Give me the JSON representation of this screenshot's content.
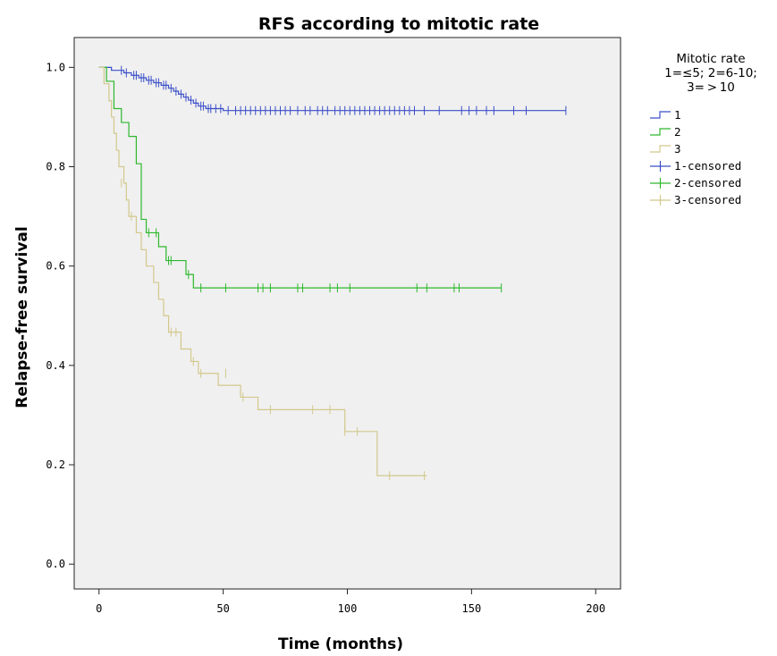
{
  "chart_data": {
    "type": "line",
    "title": "RFS according to mitotic rate",
    "xlabel": "Time (months)",
    "ylabel": "Relapse-free survival",
    "xlim": [
      -10,
      210
    ],
    "ylim": [
      -0.05,
      1.06
    ],
    "xticks": [
      0,
      50,
      100,
      150,
      200
    ],
    "yticks": [
      0.0,
      0.2,
      0.4,
      0.6,
      0.8,
      1.0
    ],
    "xtick_labels": [
      "0",
      "50",
      "100",
      "150",
      "200"
    ],
    "ytick_labels": [
      "0.0",
      "0.2",
      "0.4",
      "0.6",
      "0.8",
      "1.0"
    ],
    "grid": false,
    "legend": {
      "position": "right",
      "title_lines": [
        "Mitotic rate",
        "1=≤5;  2=6-10;",
        "3= > 10"
      ],
      "entries": [
        "1",
        "2",
        "3",
        "1-censored",
        "2-censored",
        "3-censored"
      ]
    },
    "series": [
      {
        "name": "1",
        "color": "#3b4fc8",
        "steps": [
          [
            0,
            1.0
          ],
          [
            5,
            1.0
          ],
          [
            5,
            0.994
          ],
          [
            10,
            0.994
          ],
          [
            10,
            0.989
          ],
          [
            13,
            0.989
          ],
          [
            13,
            0.984
          ],
          [
            16,
            0.984
          ],
          [
            16,
            0.979
          ],
          [
            19,
            0.979
          ],
          [
            19,
            0.974
          ],
          [
            22,
            0.974
          ],
          [
            22,
            0.969
          ],
          [
            25,
            0.969
          ],
          [
            25,
            0.964
          ],
          [
            28,
            0.964
          ],
          [
            28,
            0.958
          ],
          [
            30,
            0.958
          ],
          [
            30,
            0.952
          ],
          [
            32,
            0.952
          ],
          [
            32,
            0.946
          ],
          [
            34,
            0.946
          ],
          [
            34,
            0.94
          ],
          [
            36,
            0.94
          ],
          [
            36,
            0.934
          ],
          [
            38,
            0.934
          ],
          [
            38,
            0.928
          ],
          [
            40,
            0.928
          ],
          [
            40,
            0.922
          ],
          [
            43,
            0.922
          ],
          [
            43,
            0.917
          ],
          [
            50,
            0.917
          ],
          [
            50,
            0.913
          ],
          [
            188,
            0.913
          ]
        ],
        "censored": [
          [
            9,
            0.994
          ],
          [
            11,
            0.989
          ],
          [
            14,
            0.984
          ],
          [
            15,
            0.984
          ],
          [
            17,
            0.979
          ],
          [
            18,
            0.979
          ],
          [
            20,
            0.974
          ],
          [
            21,
            0.974
          ],
          [
            23,
            0.969
          ],
          [
            24,
            0.969
          ],
          [
            26,
            0.964
          ],
          [
            27,
            0.964
          ],
          [
            29,
            0.958
          ],
          [
            31,
            0.952
          ],
          [
            33,
            0.946
          ],
          [
            35,
            0.94
          ],
          [
            37,
            0.934
          ],
          [
            39,
            0.928
          ],
          [
            41,
            0.922
          ],
          [
            42,
            0.922
          ],
          [
            44,
            0.917
          ],
          [
            45,
            0.917
          ],
          [
            47,
            0.917
          ],
          [
            49,
            0.917
          ],
          [
            52,
            0.913
          ],
          [
            55,
            0.913
          ],
          [
            57,
            0.913
          ],
          [
            59,
            0.913
          ],
          [
            61,
            0.913
          ],
          [
            63,
            0.913
          ],
          [
            65,
            0.913
          ],
          [
            67,
            0.913
          ],
          [
            69,
            0.913
          ],
          [
            71,
            0.913
          ],
          [
            73,
            0.913
          ],
          [
            75,
            0.913
          ],
          [
            77,
            0.913
          ],
          [
            80,
            0.913
          ],
          [
            83,
            0.913
          ],
          [
            85,
            0.913
          ],
          [
            88,
            0.913
          ],
          [
            90,
            0.913
          ],
          [
            92,
            0.913
          ],
          [
            95,
            0.913
          ],
          [
            97,
            0.913
          ],
          [
            99,
            0.913
          ],
          [
            101,
            0.913
          ],
          [
            103,
            0.913
          ],
          [
            105,
            0.913
          ],
          [
            107,
            0.913
          ],
          [
            109,
            0.913
          ],
          [
            111,
            0.913
          ],
          [
            113,
            0.913
          ],
          [
            115,
            0.913
          ],
          [
            117,
            0.913
          ],
          [
            119,
            0.913
          ],
          [
            121,
            0.913
          ],
          [
            123,
            0.913
          ],
          [
            125,
            0.913
          ],
          [
            127,
            0.913
          ],
          [
            131,
            0.913
          ],
          [
            137,
            0.913
          ],
          [
            146,
            0.913
          ],
          [
            149,
            0.913
          ],
          [
            152,
            0.913
          ],
          [
            156,
            0.913
          ],
          [
            159,
            0.913
          ],
          [
            167,
            0.913
          ],
          [
            172,
            0.913
          ],
          [
            188,
            0.913
          ]
        ]
      },
      {
        "name": "2",
        "color": "#2db82d",
        "steps": [
          [
            0,
            1.0
          ],
          [
            3,
            1.0
          ],
          [
            3,
            0.972
          ],
          [
            6,
            0.972
          ],
          [
            6,
            0.917
          ],
          [
            9,
            0.917
          ],
          [
            9,
            0.889
          ],
          [
            12,
            0.889
          ],
          [
            12,
            0.861
          ],
          [
            15,
            0.861
          ],
          [
            15,
            0.806
          ],
          [
            17,
            0.806
          ],
          [
            17,
            0.694
          ],
          [
            19,
            0.694
          ],
          [
            19,
            0.667
          ],
          [
            24,
            0.667
          ],
          [
            24,
            0.639
          ],
          [
            27,
            0.639
          ],
          [
            27,
            0.611
          ],
          [
            35,
            0.611
          ],
          [
            35,
            0.583
          ],
          [
            38,
            0.583
          ],
          [
            38,
            0.556
          ],
          [
            162,
            0.556
          ]
        ],
        "censored": [
          [
            20,
            0.667
          ],
          [
            23,
            0.667
          ],
          [
            28,
            0.611
          ],
          [
            29,
            0.611
          ],
          [
            36,
            0.583
          ],
          [
            41,
            0.556
          ],
          [
            51,
            0.556
          ],
          [
            64,
            0.556
          ],
          [
            66,
            0.556
          ],
          [
            69,
            0.556
          ],
          [
            80,
            0.556
          ],
          [
            82,
            0.556
          ],
          [
            93,
            0.556
          ],
          [
            96,
            0.556
          ],
          [
            101,
            0.556
          ],
          [
            128,
            0.556
          ],
          [
            132,
            0.556
          ],
          [
            143,
            0.556
          ],
          [
            145,
            0.556
          ],
          [
            162,
            0.556
          ]
        ]
      },
      {
        "name": "3",
        "color": "#d2c88c",
        "steps": [
          [
            0,
            1.0
          ],
          [
            2,
            1.0
          ],
          [
            2,
            0.967
          ],
          [
            4,
            0.967
          ],
          [
            4,
            0.933
          ],
          [
            5,
            0.933
          ],
          [
            5,
            0.9
          ],
          [
            6,
            0.9
          ],
          [
            6,
            0.867
          ],
          [
            7,
            0.867
          ],
          [
            7,
            0.833
          ],
          [
            8,
            0.833
          ],
          [
            8,
            0.8
          ],
          [
            10,
            0.8
          ],
          [
            10,
            0.767
          ],
          [
            11,
            0.767
          ],
          [
            11,
            0.733
          ],
          [
            12,
            0.733
          ],
          [
            12,
            0.7
          ],
          [
            15,
            0.7
          ],
          [
            15,
            0.667
          ],
          [
            17,
            0.667
          ],
          [
            17,
            0.633
          ],
          [
            19,
            0.633
          ],
          [
            19,
            0.6
          ],
          [
            22,
            0.6
          ],
          [
            22,
            0.567
          ],
          [
            24,
            0.567
          ],
          [
            24,
            0.533
          ],
          [
            26,
            0.533
          ],
          [
            26,
            0.5
          ],
          [
            28,
            0.5
          ],
          [
            28,
            0.467
          ],
          [
            33,
            0.467
          ],
          [
            33,
            0.433
          ],
          [
            37,
            0.433
          ],
          [
            37,
            0.408
          ],
          [
            40,
            0.408
          ],
          [
            40,
            0.384
          ],
          [
            48,
            0.384
          ],
          [
            48,
            0.36
          ],
          [
            57,
            0.36
          ],
          [
            57,
            0.336
          ],
          [
            64,
            0.336
          ],
          [
            64,
            0.311
          ],
          [
            99,
            0.311
          ],
          [
            99,
            0.267
          ],
          [
            112,
            0.267
          ],
          [
            112,
            0.178
          ],
          [
            132,
            0.178
          ]
        ],
        "censored": [
          [
            9,
            0.767
          ],
          [
            13,
            0.7
          ],
          [
            29,
            0.467
          ],
          [
            31,
            0.467
          ],
          [
            38,
            0.408
          ],
          [
            41,
            0.384
          ],
          [
            51,
            0.384
          ],
          [
            58,
            0.336
          ],
          [
            69,
            0.311
          ],
          [
            86,
            0.311
          ],
          [
            93,
            0.311
          ],
          [
            99,
            0.267
          ],
          [
            104,
            0.267
          ],
          [
            117,
            0.178
          ],
          [
            131,
            0.178
          ]
        ]
      }
    ]
  }
}
